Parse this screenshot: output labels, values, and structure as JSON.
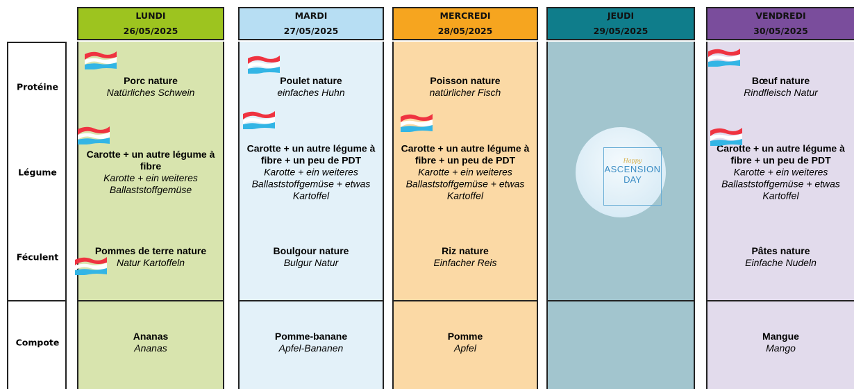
{
  "row_labels": [
    "Protéine",
    "Légume",
    "Féculent",
    "Compote"
  ],
  "days": [
    {
      "name": "LUNDI",
      "date": "26/05/2025",
      "header_color": "#9dc41f",
      "body_color": "#d8e4ae",
      "cells": [
        {
          "fr": "Porc nature",
          "de": "Natürliches Schwein"
        },
        {
          "fr": "Carotte + un autre légume à fibre",
          "de": "Karotte + ein weiteres Ballaststoffgemüse"
        },
        {
          "fr": "Pommes de terre nature",
          "de": "Natur Kartoffeln"
        },
        {
          "fr": "Ananas",
          "de": "Ananas"
        }
      ]
    },
    {
      "name": "MARDI",
      "date": "27/05/2025",
      "header_color": "#b7def3",
      "body_color": "#e3f1f9",
      "cells": [
        {
          "fr": "Poulet nature",
          "de": "einfaches Huhn"
        },
        {
          "fr": "Carotte + un autre légume à fibre + un peu de PDT",
          "de": "Karotte + ein weiteres Ballaststoffgemüse + etwas Kartoffel"
        },
        {
          "fr": "Boulgour nature",
          "de": "Bulgur Natur"
        },
        {
          "fr": "Pomme-banane",
          "de": "Apfel-Bananen"
        }
      ]
    },
    {
      "name": "MERCREDI",
      "date": "28/05/2025",
      "header_color": "#f6a51f",
      "body_color": "#fbd9a5",
      "cells": [
        {
          "fr": "Poisson nature",
          "de": "natürlicher Fisch"
        },
        {
          "fr": "Carotte + un autre légume à fibre + un peu de PDT",
          "de": "Karotte + ein weiteres Ballaststoffgemüse + etwas Kartoffel"
        },
        {
          "fr": "Riz nature",
          "de": "Einfacher Reis"
        },
        {
          "fr": "Pomme",
          "de": "Apfel"
        }
      ]
    },
    {
      "name": "JEUDI",
      "date": "29/05/2025",
      "header_color": "#0f7d8b",
      "body_color": "#a2c5ce",
      "holiday": {
        "small": "Happy",
        "big": "ASCENSION",
        "sub": "DAY"
      }
    },
    {
      "name": "VENDREDI",
      "date": "30/05/2025",
      "header_color": "#7a4d9c",
      "body_color": "#e2dbec",
      "cells": [
        {
          "fr": "Bœuf nature",
          "de": "Rindfleisch Natur"
        },
        {
          "fr": "Carotte + un autre légume à fibre + un peu de PDT",
          "de": "Karotte + ein weiteres Ballaststoffgemüse + etwas Kartoffel"
        },
        {
          "fr": "Pâtes nature",
          "de": "Einfache Nudeln"
        },
        {
          "fr": "Mangue",
          "de": "Mango"
        }
      ]
    }
  ]
}
